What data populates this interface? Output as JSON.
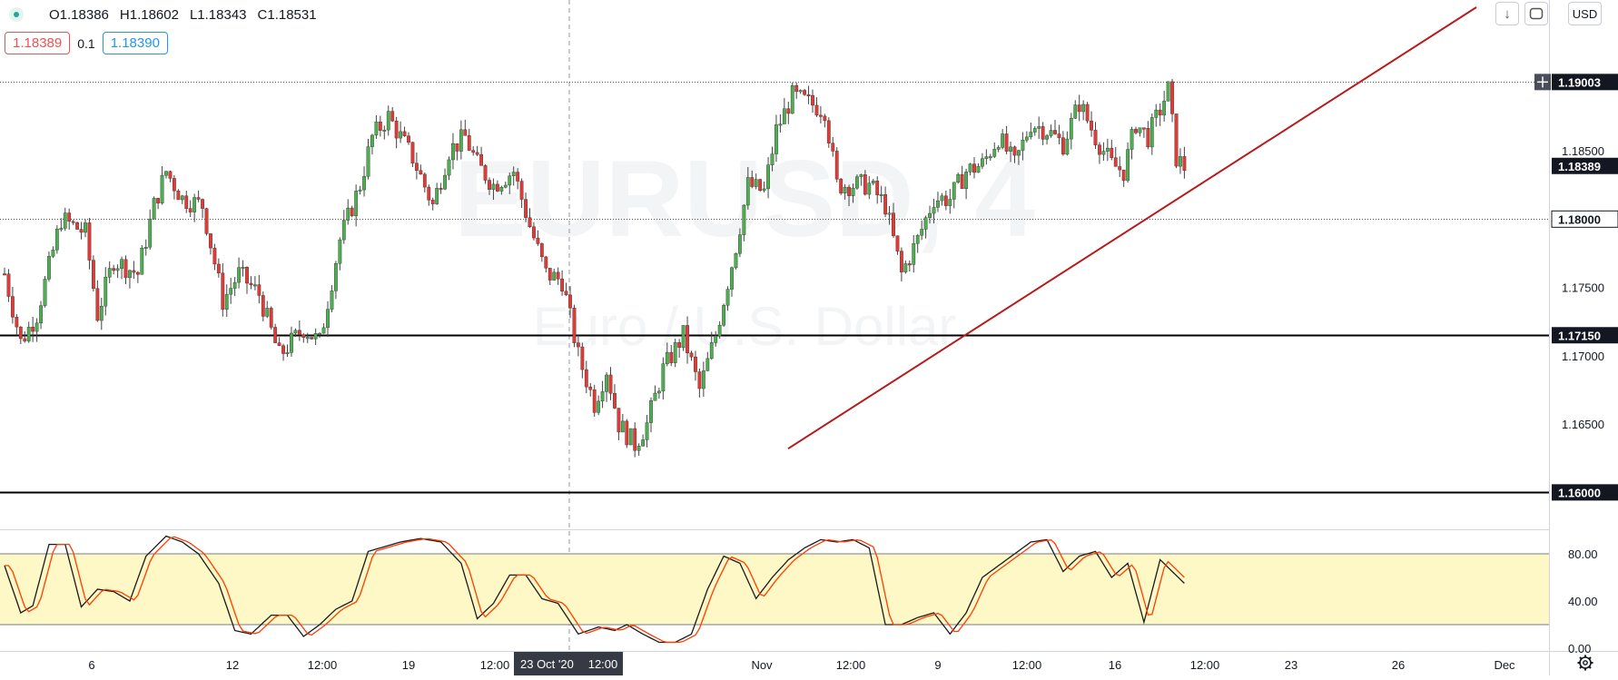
{
  "header": {
    "open": "O1.18386",
    "high": "H1.18602",
    "low": "L1.18343",
    "close": "C1.18531",
    "sell_price": "1.18389",
    "spread": "0.1",
    "buy_price": "1.18390",
    "currency": "USD"
  },
  "watermark": {
    "symbol": "EURUSD, 4",
    "description": "Euro / U.S. Dollar"
  },
  "icons": {
    "scroll_down": "arrow-down-icon",
    "fullscreen": "fullscreen-icon",
    "settings": "gear-icon",
    "crosshair": "plus-icon"
  },
  "colors": {
    "up": "#26a69a",
    "down": "#ef5350",
    "candle_up": "#4caf50",
    "candle_down": "#e53935",
    "trendline": "#b71c1c",
    "stoch_band": "#fdf8c5",
    "stoch_k": "#1b1b1b",
    "stoch_d": "#ff3d00"
  },
  "chart_data": [
    {
      "type": "candlestick",
      "symbol": "EURUSD",
      "timeframe": "4h",
      "yticks": [
        "1.18500",
        "1.17500",
        "1.17000",
        "1.16500"
      ],
      "ylim": [
        1.1575,
        1.1955
      ],
      "xticks": [
        "6",
        "12",
        "12:00",
        "19",
        "12:00",
        "23 Oct '20",
        "12:00",
        "Nov",
        "12:00",
        "9",
        "12:00",
        "16",
        "12:00",
        "23",
        "26",
        "Dec"
      ],
      "price_labels": [
        {
          "label": "1.19003",
          "style": "dark"
        },
        {
          "label": "1.18389",
          "style": "dark"
        },
        {
          "label": "1.18000",
          "style": "light"
        },
        {
          "label": "1.17150",
          "style": "dark"
        },
        {
          "label": "1.16000",
          "style": "dark"
        }
      ],
      "horizontal_lines": [
        {
          "value": 1.19003,
          "style": "dotted"
        },
        {
          "value": 1.18,
          "style": "dotted"
        },
        {
          "value": 1.1715,
          "style": "solid"
        },
        {
          "value": 1.16,
          "style": "solid"
        }
      ],
      "trendline": {
        "from_price": 1.1632,
        "to_price": 1.1955
      },
      "waypoints": [
        [
          0,
          1.176
        ],
        [
          4,
          1.171
        ],
        [
          8,
          1.173
        ],
        [
          14,
          1.18
        ],
        [
          20,
          1.179
        ],
        [
          23,
          1.173
        ],
        [
          27,
          1.177
        ],
        [
          33,
          1.176
        ],
        [
          37,
          1.181
        ],
        [
          40,
          1.1835
        ],
        [
          44,
          1.1815
        ],
        [
          49,
          1.181
        ],
        [
          54,
          1.174
        ],
        [
          58,
          1.176
        ],
        [
          63,
          1.1745
        ],
        [
          68,
          1.17
        ],
        [
          74,
          1.172
        ],
        [
          78,
          1.171
        ],
        [
          83,
          1.1785
        ],
        [
          88,
          1.1825
        ],
        [
          91,
          1.186
        ],
        [
          95,
          1.1875
        ],
        [
          101,
          1.1845
        ],
        [
          106,
          1.181
        ],
        [
          110,
          1.185
        ],
        [
          114,
          1.186
        ],
        [
          117,
          1.184
        ],
        [
          121,
          1.1825
        ],
        [
          126,
          1.1835
        ],
        [
          130,
          1.1795
        ],
        [
          134,
          1.176
        ],
        [
          138,
          1.1755
        ],
        [
          142,
          1.17
        ],
        [
          146,
          1.1665
        ],
        [
          149,
          1.169
        ],
        [
          152,
          1.165
        ],
        [
          156,
          1.1635
        ],
        [
          159,
          1.165
        ],
        [
          163,
          1.169
        ],
        [
          168,
          1.1715
        ],
        [
          172,
          1.1675
        ],
        [
          176,
          1.1715
        ],
        [
          181,
          1.178
        ],
        [
          184,
          1.1825
        ],
        [
          188,
          1.182
        ],
        [
          191,
          1.1865
        ],
        [
          195,
          1.189
        ],
        [
          199,
          1.1885
        ],
        [
          203,
          1.188
        ],
        [
          206,
          1.1825
        ],
        [
          210,
          1.1825
        ],
        [
          214,
          1.1825
        ],
        [
          218,
          1.181
        ],
        [
          222,
          1.176
        ],
        [
          226,
          1.1785
        ],
        [
          230,
          1.1815
        ],
        [
          234,
          1.1815
        ],
        [
          238,
          1.1835
        ],
        [
          242,
          1.184
        ],
        [
          246,
          1.186
        ],
        [
          250,
          1.184
        ],
        [
          254,
          1.187
        ],
        [
          258,
          1.1865
        ],
        [
          262,
          1.1855
        ],
        [
          266,
          1.1885
        ],
        [
          270,
          1.186
        ],
        [
          274,
          1.184
        ],
        [
          277,
          1.1835
        ],
        [
          280,
          1.187
        ],
        [
          283,
          1.186
        ],
        [
          286,
          1.188
        ],
        [
          288,
          1.1895
        ],
        [
          290,
          1.1845
        ],
        [
          292,
          1.1838
        ]
      ],
      "stochastic": {
        "ylim": [
          0,
          100
        ],
        "band": [
          20,
          80
        ],
        "yticks": [
          "80.00",
          "40.00",
          "0.00"
        ],
        "k_waypoints": [
          [
            0,
            70
          ],
          [
            4,
            30
          ],
          [
            7,
            36
          ],
          [
            11,
            88
          ],
          [
            15,
            88
          ],
          [
            19,
            35
          ],
          [
            23,
            50
          ],
          [
            27,
            48
          ],
          [
            31,
            40
          ],
          [
            35,
            78
          ],
          [
            40,
            95
          ],
          [
            44,
            90
          ],
          [
            48,
            80
          ],
          [
            53,
            55
          ],
          [
            57,
            15
          ],
          [
            61,
            12
          ],
          [
            66,
            28
          ],
          [
            70,
            28
          ],
          [
            74,
            10
          ],
          [
            78,
            20
          ],
          [
            82,
            33
          ],
          [
            86,
            40
          ],
          [
            90,
            82
          ],
          [
            94,
            86
          ],
          [
            98,
            90
          ],
          [
            103,
            93
          ],
          [
            108,
            90
          ],
          [
            113,
            72
          ],
          [
            117,
            25
          ],
          [
            121,
            38
          ],
          [
            125,
            62
          ],
          [
            129,
            62
          ],
          [
            133,
            42
          ],
          [
            137,
            38
          ],
          [
            142,
            12
          ],
          [
            147,
            18
          ],
          [
            151,
            15
          ],
          [
            154,
            20
          ],
          [
            158,
            12
          ],
          [
            162,
            5
          ],
          [
            166,
            5
          ],
          [
            170,
            12
          ],
          [
            174,
            50
          ],
          [
            178,
            78
          ],
          [
            182,
            72
          ],
          [
            186,
            42
          ],
          [
            190,
            60
          ],
          [
            194,
            75
          ],
          [
            198,
            85
          ],
          [
            202,
            92
          ],
          [
            206,
            90
          ],
          [
            210,
            92
          ],
          [
            214,
            85
          ],
          [
            218,
            20
          ],
          [
            222,
            20
          ],
          [
            226,
            26
          ],
          [
            230,
            30
          ],
          [
            234,
            12
          ],
          [
            238,
            30
          ],
          [
            242,
            60
          ],
          [
            246,
            70
          ],
          [
            250,
            80
          ],
          [
            254,
            90
          ],
          [
            258,
            92
          ],
          [
            262,
            65
          ],
          [
            266,
            78
          ],
          [
            270,
            82
          ],
          [
            274,
            60
          ],
          [
            278,
            72
          ],
          [
            282,
            22
          ],
          [
            286,
            75
          ],
          [
            289,
            65
          ],
          [
            292,
            55
          ]
        ],
        "d_lag": 1.5
      }
    }
  ]
}
